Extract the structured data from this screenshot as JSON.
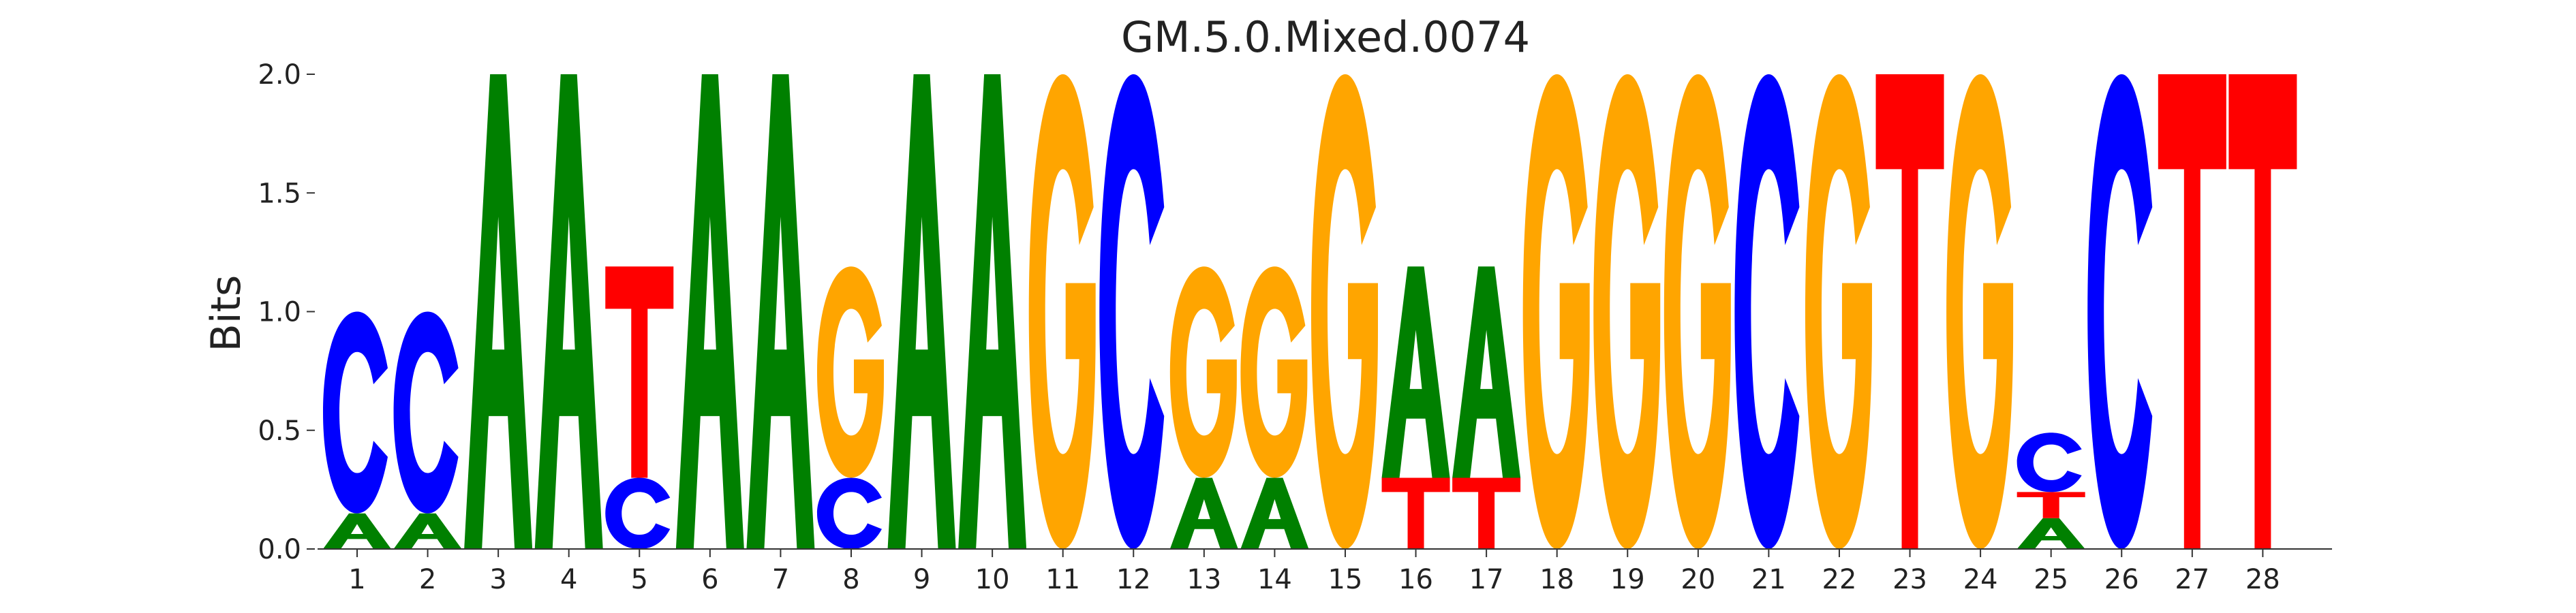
{
  "chart_data": {
    "type": "sequence-logo",
    "title": "GM.5.0.Mixed.0074",
    "xlabel": "",
    "ylabel": "Bits",
    "ylim": [
      0,
      2
    ],
    "yticks": [
      "0.0",
      "0.5",
      "1.0",
      "1.5",
      "2.0"
    ],
    "grid": false,
    "colors": {
      "A": "#008000",
      "C": "#0000ff",
      "G": "#ffa500",
      "T": "#ff0000"
    },
    "positions": [
      {
        "pos": "1",
        "letters": [
          {
            "letter": "A",
            "bits": 0.15
          },
          {
            "letter": "C",
            "bits": 0.85
          }
        ]
      },
      {
        "pos": "2",
        "letters": [
          {
            "letter": "A",
            "bits": 0.15
          },
          {
            "letter": "C",
            "bits": 0.85
          }
        ]
      },
      {
        "pos": "3",
        "letters": [
          {
            "letter": "A",
            "bits": 2.0
          }
        ]
      },
      {
        "pos": "4",
        "letters": [
          {
            "letter": "A",
            "bits": 2.0
          }
        ]
      },
      {
        "pos": "5",
        "letters": [
          {
            "letter": "C",
            "bits": 0.3
          },
          {
            "letter": "T",
            "bits": 0.89
          }
        ]
      },
      {
        "pos": "6",
        "letters": [
          {
            "letter": "A",
            "bits": 2.0
          }
        ]
      },
      {
        "pos": "7",
        "letters": [
          {
            "letter": "A",
            "bits": 2.0
          }
        ]
      },
      {
        "pos": "8",
        "letters": [
          {
            "letter": "C",
            "bits": 0.3
          },
          {
            "letter": "G",
            "bits": 0.89
          }
        ]
      },
      {
        "pos": "9",
        "letters": [
          {
            "letter": "A",
            "bits": 2.0
          }
        ]
      },
      {
        "pos": "10",
        "letters": [
          {
            "letter": "A",
            "bits": 2.0
          }
        ]
      },
      {
        "pos": "11",
        "letters": [
          {
            "letter": "G",
            "bits": 2.0
          }
        ]
      },
      {
        "pos": "12",
        "letters": [
          {
            "letter": "C",
            "bits": 2.0
          }
        ]
      },
      {
        "pos": "13",
        "letters": [
          {
            "letter": "A",
            "bits": 0.3
          },
          {
            "letter": "G",
            "bits": 0.89
          }
        ]
      },
      {
        "pos": "14",
        "letters": [
          {
            "letter": "A",
            "bits": 0.3
          },
          {
            "letter": "G",
            "bits": 0.89
          }
        ]
      },
      {
        "pos": "15",
        "letters": [
          {
            "letter": "G",
            "bits": 2.0
          }
        ]
      },
      {
        "pos": "16",
        "letters": [
          {
            "letter": "T",
            "bits": 0.3
          },
          {
            "letter": "A",
            "bits": 0.89
          }
        ]
      },
      {
        "pos": "17",
        "letters": [
          {
            "letter": "T",
            "bits": 0.3
          },
          {
            "letter": "A",
            "bits": 0.89
          }
        ]
      },
      {
        "pos": "18",
        "letters": [
          {
            "letter": "G",
            "bits": 2.0
          }
        ]
      },
      {
        "pos": "19",
        "letters": [
          {
            "letter": "G",
            "bits": 2.0
          }
        ]
      },
      {
        "pos": "20",
        "letters": [
          {
            "letter": "G",
            "bits": 2.0
          }
        ]
      },
      {
        "pos": "21",
        "letters": [
          {
            "letter": "C",
            "bits": 2.0
          }
        ]
      },
      {
        "pos": "22",
        "letters": [
          {
            "letter": "G",
            "bits": 2.0
          }
        ]
      },
      {
        "pos": "23",
        "letters": [
          {
            "letter": "T",
            "bits": 2.0
          }
        ]
      },
      {
        "pos": "24",
        "letters": [
          {
            "letter": "G",
            "bits": 2.0
          }
        ]
      },
      {
        "pos": "25",
        "letters": [
          {
            "letter": "A",
            "bits": 0.13
          },
          {
            "letter": "T",
            "bits": 0.11
          },
          {
            "letter": "C",
            "bits": 0.25
          }
        ]
      },
      {
        "pos": "26",
        "letters": [
          {
            "letter": "C",
            "bits": 2.0
          }
        ]
      },
      {
        "pos": "27",
        "letters": [
          {
            "letter": "T",
            "bits": 2.0
          }
        ]
      },
      {
        "pos": "28",
        "letters": [
          {
            "letter": "T",
            "bits": 2.0
          }
        ]
      }
    ]
  }
}
